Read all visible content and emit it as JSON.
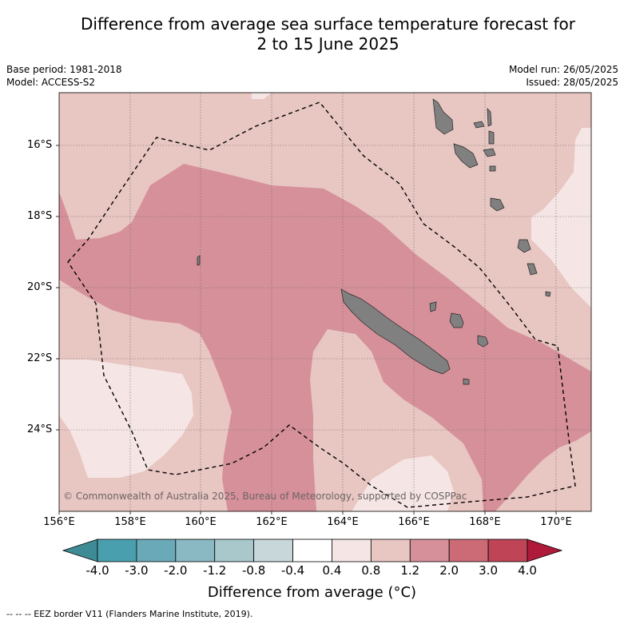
{
  "title_line1": "Difference from average sea surface temperature forecast for",
  "title_line2": "2 to 15 June 2025",
  "meta_left": [
    "Base period: 1981-2018",
    "Model: ACCESS-S2"
  ],
  "meta_right": [
    "Model run: 26/05/2025",
    "Issued: 28/05/2025"
  ],
  "lat_labels": [
    "16°S",
    "18°S",
    "20°S",
    "22°S",
    "24°S"
  ],
  "lon_labels": [
    "156°E",
    "158°E",
    "160°E",
    "162°E",
    "164°E",
    "166°E",
    "168°E",
    "170°E"
  ],
  "copyright": "© Commonwealth of Australia 2025, Bureau of Meteorology, supported by COSPPac",
  "colorbar": {
    "ticks": [
      "-4.0",
      "-3.0",
      "-2.0",
      "-1.2",
      "-0.8",
      "-0.4",
      "0.4",
      "0.8",
      "1.2",
      "2.0",
      "3.0",
      "4.0"
    ],
    "colors": [
      "#4a9fae",
      "#6aa9b8",
      "#8ab8c3",
      "#a8c8cc",
      "#c8d8da",
      "#ffffff",
      "#f5e6e5",
      "#e8c6c2",
      "#d6909a",
      "#cc6a76",
      "#be4456"
    ],
    "under_color": "#3f8b95",
    "over_color": "#b01a3a",
    "label": "Difference from average (°C)"
  },
  "legend_note": "--  --  -- EEZ border V11 (Flanders Marine Institute, 2019).",
  "colors": {
    "land": "#808080",
    "anomaly_04_08": "#f5e6e5",
    "anomaly_08_12": "#e8c6c2",
    "anomaly_12_20": "#d6909a"
  }
}
